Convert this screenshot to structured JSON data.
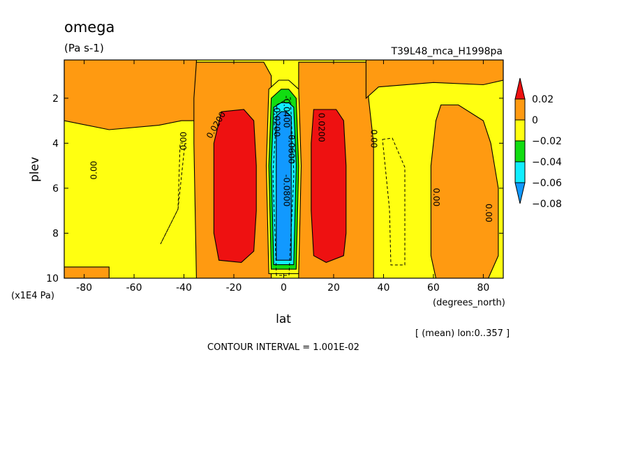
{
  "chart_data": {
    "type": "heatmap",
    "title": "omega",
    "units": "(Pa s-1)",
    "run_label": "T39L48_mca_H1998pa",
    "xlabel": "lat",
    "x_units": "(degrees_north)",
    "ylabel": "plev",
    "y_units": "(x1E4 Pa)",
    "x_ticks": [
      "-80",
      "-60",
      "-40",
      "-20",
      "0",
      "20",
      "40",
      "60",
      "80"
    ],
    "x_tick_values": [
      -80,
      -60,
      -40,
      -20,
      0,
      20,
      40,
      60,
      80
    ],
    "y_ticks": [
      "2",
      "4",
      "6",
      "8",
      "10"
    ],
    "y_tick_values": [
      2,
      4,
      6,
      8,
      10
    ],
    "xlim": [
      -88,
      88
    ],
    "ylim": [
      10,
      0.3
    ],
    "averaging_note": "[ (mean) lon:0..357 ]",
    "contour_interval_text": "CONTOUR INTERVAL = 1.001E-02",
    "colorbar": {
      "labels": [
        "0.02",
        "0",
        "−0.02",
        "−0.04",
        "−0.06",
        "−0.08"
      ],
      "bands": [
        {
          "min": 0.02,
          "color": "#ee1111"
        },
        {
          "min": 0.0,
          "max": 0.02,
          "color": "#ff9a11"
        },
        {
          "min": -0.02,
          "max": 0.0,
          "color": "#ffff11"
        },
        {
          "min": -0.04,
          "max": -0.02,
          "color": "#11dd11"
        },
        {
          "min": -0.06,
          "max": -0.04,
          "color": "#11eeff"
        },
        {
          "max": -0.06,
          "color": "#1199ff"
        }
      ]
    },
    "regions": [
      {
        "range": "0 to 0.02",
        "color": "#ff9a11",
        "poly": [
          [
            -88,
            0.3
          ],
          [
            -35,
            0.3
          ],
          [
            -35,
            3
          ],
          [
            -41,
            3
          ],
          [
            -50,
            3.2
          ],
          [
            -70,
            3.4
          ],
          [
            -88,
            3.0
          ]
        ]
      },
      {
        "range": "0 to 0.02",
        "color": "#ff9a11",
        "poly": [
          [
            -35,
            0.4
          ],
          [
            -8,
            0.4
          ],
          [
            -5,
            1
          ],
          [
            -5,
            10
          ],
          [
            -35,
            10
          ],
          [
            -36,
            4
          ],
          [
            -36,
            2
          ]
        ]
      },
      {
        "range": "0 to 0.02",
        "color": "#ff9a11",
        "poly": [
          [
            6,
            0.4
          ],
          [
            33,
            0.4
          ],
          [
            34,
            2
          ],
          [
            36,
            4
          ],
          [
            36,
            10
          ],
          [
            6,
            10
          ]
        ]
      },
      {
        "range": "0 to 0.02",
        "color": "#ff9a11",
        "poly": [
          [
            33,
            0.3
          ],
          [
            88,
            0.3
          ],
          [
            88,
            1.2
          ],
          [
            80,
            1.4
          ],
          [
            60,
            1.3
          ],
          [
            38,
            1.5
          ],
          [
            33,
            2
          ]
        ]
      },
      {
        "range": "0 to 0.02",
        "color": "#ff9a11",
        "poly": [
          [
            63,
            2.3
          ],
          [
            70,
            2.3
          ],
          [
            80,
            3.0
          ],
          [
            83,
            4.0
          ],
          [
            86,
            6.0
          ],
          [
            86,
            9.0
          ],
          [
            82,
            10
          ],
          [
            61,
            10
          ],
          [
            59,
            9
          ],
          [
            59,
            5
          ],
          [
            61,
            3
          ]
        ]
      },
      {
        "range": "0 to 0.02",
        "color": "#ff9a11",
        "poly": [
          [
            -70,
            9.5
          ],
          [
            -88,
            9.5
          ],
          [
            -88,
            10
          ],
          [
            -70,
            10
          ]
        ]
      },
      {
        "range": "greater than 0.02",
        "color": "#ee1111",
        "poly": [
          [
            -25,
            2.6
          ],
          [
            -16,
            2.5
          ],
          [
            -12,
            3.0
          ],
          [
            -11,
            5.0
          ],
          [
            -11,
            7.0
          ],
          [
            -12,
            8.8
          ],
          [
            -17,
            9.3
          ],
          [
            -26,
            9.2
          ],
          [
            -28,
            8.0
          ],
          [
            -28,
            4.0
          ]
        ]
      },
      {
        "range": "greater than 0.02",
        "color": "#ee1111",
        "poly": [
          [
            12,
            2.5
          ],
          [
            21,
            2.5
          ],
          [
            24,
            3.0
          ],
          [
            25,
            5.0
          ],
          [
            25,
            8.0
          ],
          [
            24,
            9.0
          ],
          [
            17,
            9.3
          ],
          [
            12,
            9.0
          ],
          [
            11,
            7.0
          ],
          [
            11,
            4.0
          ]
        ]
      },
      {
        "range": "-0.02 to 0",
        "color": "#ffff11",
        "poly": [
          [
            -6,
            1.6
          ],
          [
            -2,
            1.2
          ],
          [
            2,
            1.2
          ],
          [
            6,
            1.6
          ],
          [
            7,
            5
          ],
          [
            6,
            9.8
          ],
          [
            -6,
            9.8
          ],
          [
            -7,
            5
          ]
        ]
      },
      {
        "range": "-0.04 to -0.02",
        "color": "#11dd11",
        "poly": [
          [
            -5,
            2.0
          ],
          [
            -1,
            1.6
          ],
          [
            2,
            1.6
          ],
          [
            5,
            2.0
          ],
          [
            6,
            5
          ],
          [
            5,
            9.6
          ],
          [
            -5,
            9.6
          ],
          [
            -6,
            5
          ]
        ]
      },
      {
        "range": "-0.06 to -0.04",
        "color": "#11eeff",
        "poly": [
          [
            -4,
            2.4
          ],
          [
            -1,
            2.2
          ],
          [
            2,
            2.2
          ],
          [
            4,
            2.4
          ],
          [
            5,
            5
          ],
          [
            4,
            9.4
          ],
          [
            -4,
            9.4
          ],
          [
            -5,
            5
          ]
        ]
      },
      {
        "range": "less than -0.06",
        "color": "#1199ff",
        "poly": [
          [
            -3,
            2.8
          ],
          [
            -1,
            2.6
          ],
          [
            1,
            2.6
          ],
          [
            3,
            2.8
          ],
          [
            3,
            5
          ],
          [
            3,
            9.2
          ],
          [
            -3,
            9.2
          ],
          [
            -3,
            5
          ]
        ]
      }
    ],
    "contour_labels": [
      {
        "text": "0.00",
        "lat": -76,
        "plev": 5.2,
        "rotate": -90
      },
      {
        "text": "0.0200",
        "lat": -27,
        "plev": 3.2,
        "rotate": -60
      },
      {
        "text": "0.00",
        "lat": -40,
        "plev": 3.9,
        "rotate": -90
      },
      {
        "text": "0.0200",
        "lat": 15,
        "plev": 3.3,
        "rotate": 90
      },
      {
        "text": "0.00",
        "lat": 36,
        "plev": 3.8,
        "rotate": 90
      },
      {
        "text": "0.00",
        "lat": 61,
        "plev": 6.4,
        "rotate": 90
      },
      {
        "text": "0.00",
        "lat": 82,
        "plev": 7.1,
        "rotate": 90
      },
      {
        "text": "-0.0200",
        "lat": -3,
        "plev": 3.0,
        "rotate": 90
      },
      {
        "text": "-0.0400",
        "lat": 1,
        "plev": 2.6,
        "rotate": 90
      },
      {
        "text": "-0.0600",
        "lat": 3,
        "plev": 4.2,
        "rotate": 90
      },
      {
        "text": "-0.0800",
        "lat": 1,
        "plev": 6.1,
        "rotate": 90
      }
    ]
  }
}
